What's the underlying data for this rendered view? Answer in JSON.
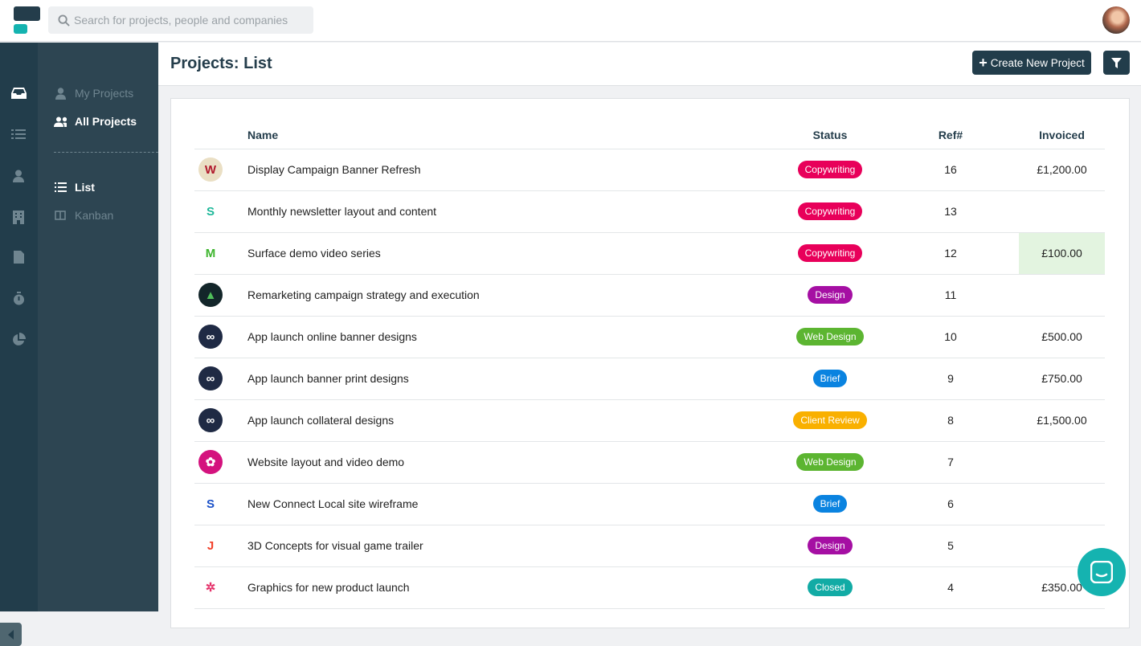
{
  "search": {
    "placeholder": "Search for projects, people and companies"
  },
  "sidebar": {
    "items": [
      {
        "label": "My Projects",
        "icon": "user-icon"
      },
      {
        "label": "All Projects",
        "icon": "users-icon"
      },
      {
        "label": "List",
        "icon": "list-icon"
      },
      {
        "label": "Kanban",
        "icon": "columns-icon"
      }
    ]
  },
  "header": {
    "title": "Projects: List",
    "create_label": "Create New Project"
  },
  "table": {
    "columns": [
      "",
      "Name",
      "Status",
      "Ref#",
      "Invoiced"
    ],
    "rows": [
      {
        "name": "Display Campaign Banner Refresh",
        "status": "Copywriting",
        "color": "#e8005a",
        "ref": "16",
        "invoiced": "£1,200.00",
        "logo": "W",
        "logo_bg": "#eadfc4",
        "logo_fg": "#b0182b"
      },
      {
        "name": "Monthly newsletter layout and content",
        "status": "Copywriting",
        "color": "#e8005a",
        "ref": "13",
        "invoiced": "",
        "logo": "S",
        "logo_bg": "#fff",
        "logo_fg": "#1fb89a"
      },
      {
        "name": "Surface demo video series",
        "status": "Copywriting",
        "color": "#e8005a",
        "ref": "12",
        "invoiced": "£100.00",
        "highlight": true,
        "logo": "M",
        "logo_bg": "#fff",
        "logo_fg": "#3fb62f"
      },
      {
        "name": "Remarketing campaign strategy and execution",
        "status": "Design",
        "color": "#a50fa3",
        "ref": "11",
        "invoiced": "",
        "logo": "▲",
        "logo_bg": "#13262a",
        "logo_fg": "#4fbf5a"
      },
      {
        "name": "App launch online banner designs",
        "status": "Web Design",
        "color": "#5cb531",
        "ref": "10",
        "invoiced": "£500.00",
        "logo": "∞",
        "logo_bg": "#1f2a44",
        "logo_fg": "#fff"
      },
      {
        "name": "App launch banner print designs",
        "status": "Brief",
        "color": "#0a83e0",
        "ref": "9",
        "invoiced": "£750.00",
        "logo": "∞",
        "logo_bg": "#1f2a44",
        "logo_fg": "#fff"
      },
      {
        "name": "App launch collateral designs",
        "status": "Client Review",
        "color": "#f9b000",
        "ref": "8",
        "invoiced": "£1,500.00",
        "logo": "∞",
        "logo_bg": "#1f2a44",
        "logo_fg": "#fff"
      },
      {
        "name": "Website layout and video demo",
        "status": "Web Design",
        "color": "#5cb531",
        "ref": "7",
        "invoiced": "",
        "logo": "✿",
        "logo_bg": "#d4127e",
        "logo_fg": "#fff"
      },
      {
        "name": "New Connect Local site wireframe",
        "status": "Brief",
        "color": "#0a83e0",
        "ref": "6",
        "invoiced": "",
        "logo": "S",
        "logo_bg": "#fff",
        "logo_fg": "#1a50c8"
      },
      {
        "name": "3D Concepts for visual game trailer",
        "status": "Design",
        "color": "#a50fa3",
        "ref": "5",
        "invoiced": "",
        "logo": "J",
        "logo_bg": "#fff",
        "logo_fg": "#f2412a"
      },
      {
        "name": "Graphics for new product launch",
        "status": "Closed",
        "color": "#12aba5",
        "ref": "4",
        "invoiced": "£350.00",
        "logo": "✲",
        "logo_bg": "#fff",
        "logo_fg": "#e5336b"
      }
    ]
  },
  "colors": {
    "primary": "#223d4b",
    "accent": "#14b3b0",
    "highlight": "#e3f4e0"
  }
}
